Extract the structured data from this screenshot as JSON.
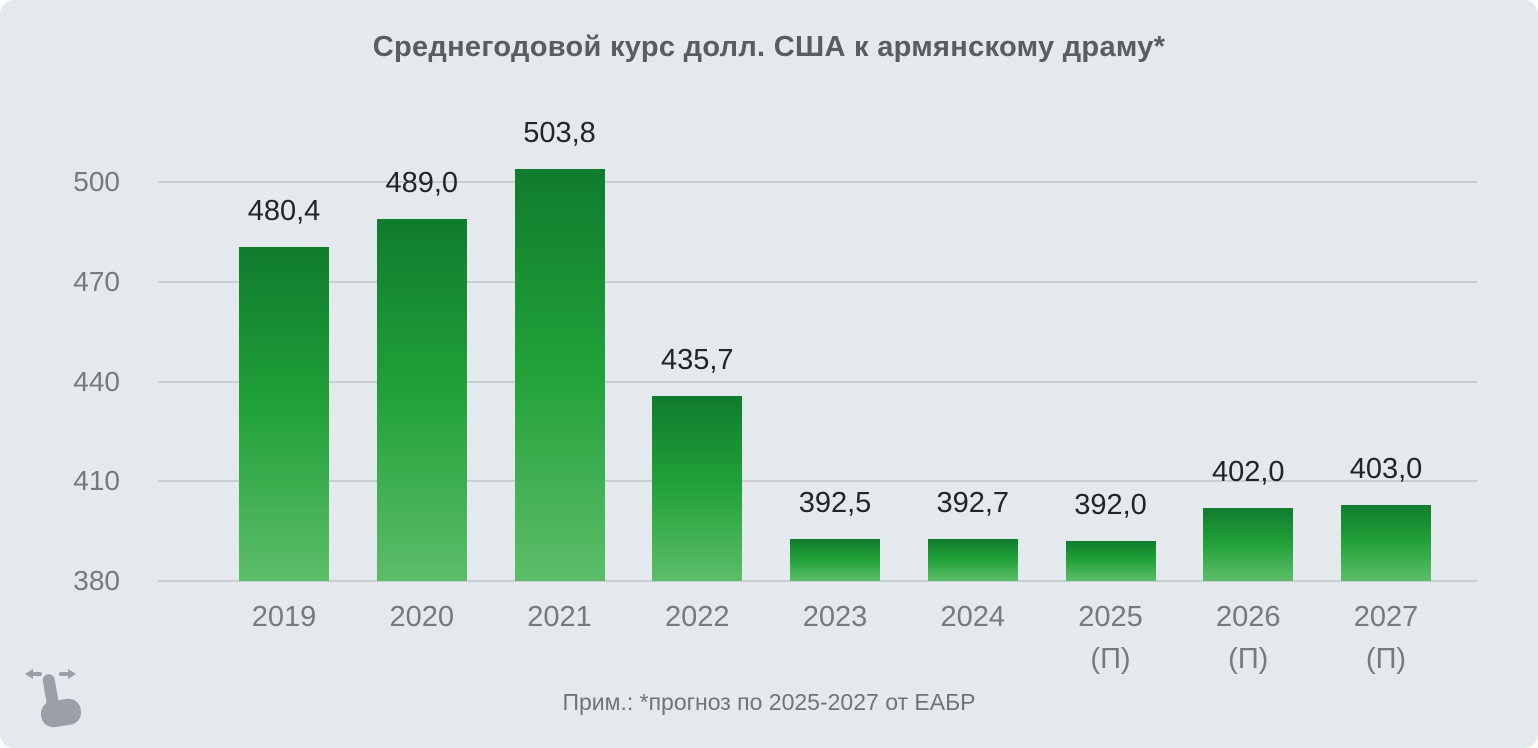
{
  "card": {
    "background": "#e4e9ed"
  },
  "colors": {
    "card_bg": "#e4e9ed",
    "bar_gradient_top": "#107c2e",
    "bar_gradient_mid": "#21a138",
    "bar_gradient_bottom": "#5cbd69",
    "grid_line": "#c9ced3",
    "axis_text": "#757a7f",
    "value_text": "#222528",
    "title_text": "#585d62",
    "note_text": "#6e7479",
    "icon": "#9aa0a6"
  },
  "icons": {
    "swipe_hint": "swipe-horizontal-gesture"
  },
  "chart_data": {
    "type": "bar",
    "title": "Среднегодовой курс долл. США к армянскому драму*",
    "note": "Прим.: *прогноз по 2025-2027 от ЕАБР",
    "xlabel": "",
    "ylabel": "",
    "ylim": [
      380,
      510
    ],
    "y_ticks": [
      380,
      410,
      440,
      470,
      500
    ],
    "grid": true,
    "legend": false,
    "decimal_separator": ",",
    "forecast_marker": "(П)",
    "bars": [
      {
        "year": "2019",
        "suffix": "",
        "value": 480.4,
        "label": "480,4"
      },
      {
        "year": "2020",
        "suffix": "",
        "value": 489.0,
        "label": "489,0"
      },
      {
        "year": "2021",
        "suffix": "",
        "value": 503.8,
        "label": "503,8"
      },
      {
        "year": "2022",
        "suffix": "",
        "value": 435.7,
        "label": "435,7"
      },
      {
        "year": "2023",
        "suffix": "",
        "value": 392.5,
        "label": "392,5"
      },
      {
        "year": "2024",
        "suffix": "",
        "value": 392.7,
        "label": "392,7"
      },
      {
        "year": "2025",
        "suffix": "(П)",
        "value": 392.0,
        "label": "392,0"
      },
      {
        "year": "2026",
        "suffix": "(П)",
        "value": 402.0,
        "label": "402,0"
      },
      {
        "year": "2027",
        "suffix": "(П)",
        "value": 403.0,
        "label": "403,0"
      }
    ]
  }
}
